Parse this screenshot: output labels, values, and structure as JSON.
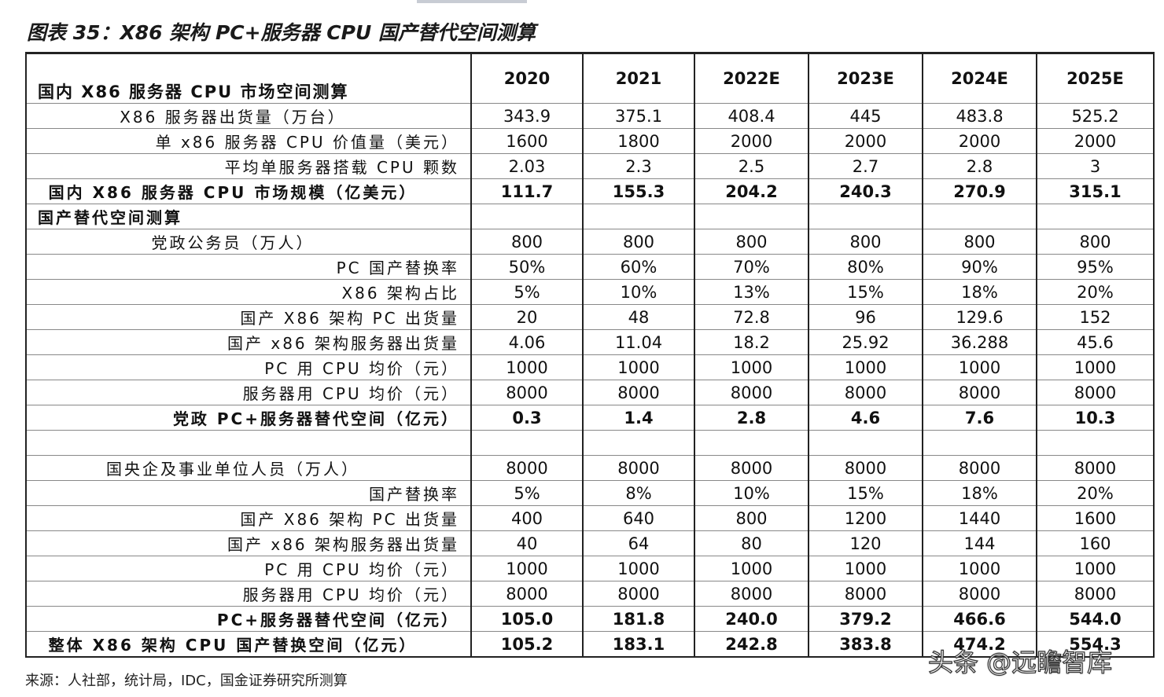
{
  "title": "图表 35：X86 架构 PC+服务器 CPU 国产替代空间测算",
  "table": {
    "corner": "国内 X86 服务器 CPU 市场空间测算",
    "years": [
      "2020",
      "2021",
      "2022E",
      "2023E",
      "2024E",
      "2025E"
    ],
    "rows": [
      {
        "label": "X86 服务器出货量（万台）",
        "cells": [
          "343.9",
          "375.1",
          "408.4",
          "445",
          "483.8",
          "525.2"
        ]
      },
      {
        "label": "单 x86 服务器 CPU 价值量（美元）",
        "cells": [
          "1600",
          "1800",
          "2000",
          "2000",
          "2000",
          "2000"
        ]
      },
      {
        "label": "平均单服务器搭载 CPU 颗数",
        "cells": [
          "2.03",
          "2.3",
          "2.5",
          "2.7",
          "2.8",
          "3"
        ]
      },
      {
        "label": "国内 X86 服务器 CPU 市场规模（亿美元）",
        "cells": [
          "111.7",
          "155.3",
          "204.2",
          "240.3",
          "270.9",
          "315.1"
        ]
      },
      {
        "label": "国产替代空间测算",
        "cells": []
      },
      {
        "label": "党政公务员（万人）",
        "cells": [
          "800",
          "800",
          "800",
          "800",
          "800",
          "800"
        ]
      },
      {
        "label": "PC 国产替换率",
        "cells": [
          "50%",
          "60%",
          "70%",
          "80%",
          "90%",
          "95%"
        ]
      },
      {
        "label": "X86 架构占比",
        "cells": [
          "5%",
          "10%",
          "13%",
          "15%",
          "18%",
          "20%"
        ]
      },
      {
        "label": "国产 X86 架构 PC 出货量",
        "cells": [
          "20",
          "48",
          "72.8",
          "96",
          "129.6",
          "152"
        ]
      },
      {
        "label": "国产 x86 架构服务器出货量",
        "cells": [
          "4.06",
          "11.04",
          "18.2",
          "25.92",
          "36.288",
          "45.6"
        ]
      },
      {
        "label": "PC 用 CPU 均价（元）",
        "cells": [
          "1000",
          "1000",
          "1000",
          "1000",
          "1000",
          "1000"
        ]
      },
      {
        "label": "服务器用 CPU 均价（元）",
        "cells": [
          "8000",
          "8000",
          "8000",
          "8000",
          "8000",
          "8000"
        ]
      },
      {
        "label": "党政 PC+服务器替代空间（亿元）",
        "cells": [
          "0.3",
          "1.4",
          "2.8",
          "4.6",
          "7.6",
          "10.3"
        ]
      },
      {
        "cells": []
      },
      {
        "label": "国央企及事业单位人员（万人）",
        "cells": [
          "8000",
          "8000",
          "8000",
          "8000",
          "8000",
          "8000"
        ]
      },
      {
        "label": "国产替换率",
        "cells": [
          "5%",
          "8%",
          "10%",
          "15%",
          "18%",
          "20%"
        ]
      },
      {
        "label": "国产 X86 架构 PC 出货量",
        "cells": [
          "400",
          "640",
          "800",
          "1200",
          "1440",
          "1600"
        ]
      },
      {
        "label": "国产 x86 架构服务器出货量",
        "cells": [
          "40",
          "64",
          "80",
          "120",
          "144",
          "160"
        ]
      },
      {
        "label": "PC 用 CPU 均价（元）",
        "cells": [
          "1000",
          "1000",
          "1000",
          "1000",
          "1000",
          "1000"
        ]
      },
      {
        "label": "服务器用 CPU 均价（元）",
        "cells": [
          "8000",
          "8000",
          "8000",
          "8000",
          "8000",
          "8000"
        ]
      },
      {
        "label": "PC+服务器替代空间（亿元）",
        "cells": [
          "105.0",
          "181.8",
          "240.0",
          "379.2",
          "466.6",
          "544.0"
        ]
      },
      {
        "label": "整体 X86 架构 CPU 国产替换空间（亿元）",
        "cells": [
          "105.2",
          "183.1",
          "242.8",
          "383.8",
          "474.2",
          "554.3"
        ]
      }
    ]
  },
  "source": "来源：人社部，统计局，IDC，国金证券研究所测算",
  "watermark": "头条 @远瞻智库"
}
